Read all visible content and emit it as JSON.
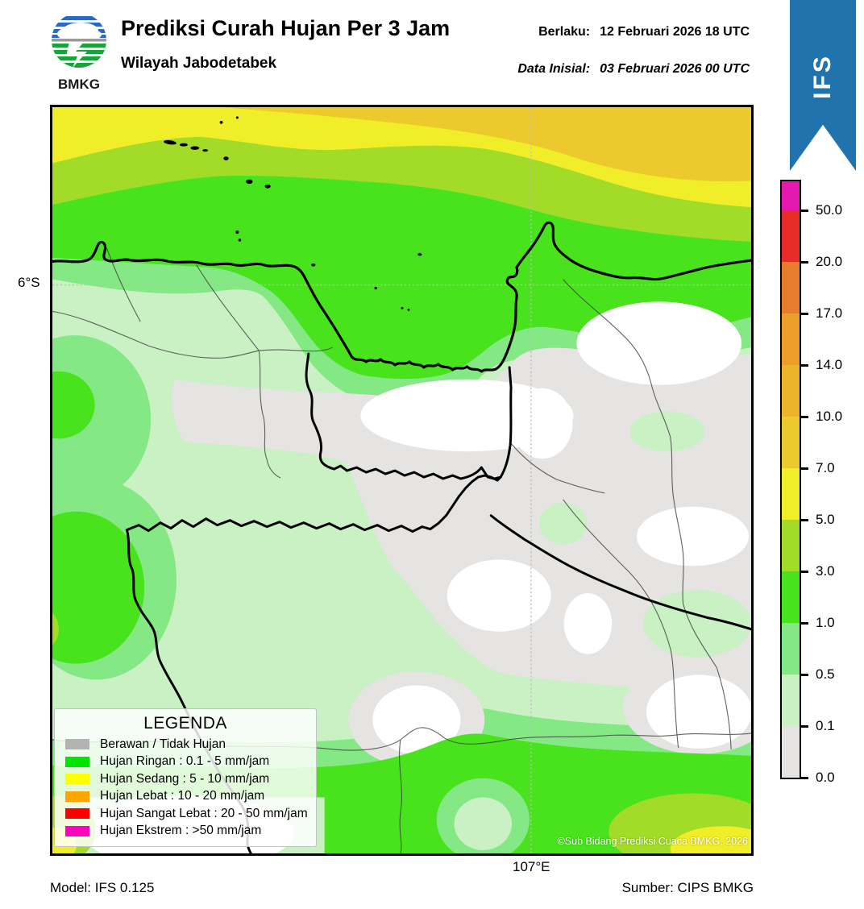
{
  "header": {
    "logo_text": "BMKG",
    "title": "Prediksi Curah Hujan Per 3 Jam",
    "subtitle": "Wilayah Jabodetabek",
    "valid_label": "Berlaku:",
    "valid_value": "12 Februari 2026 18 UTC",
    "init_label": "Data Inisial:",
    "init_value": "03 Februari 2026 00 UTC",
    "ribbon_label": "IFS",
    "ribbon_color": "#2173ae"
  },
  "map": {
    "lat_tick_label": "6°S",
    "lon_tick_label": "107°E",
    "copyright": "©Sub Bidang Prediksi Cuaca BMKG, 2026"
  },
  "colorbar": {
    "unit_note": "mm/jam",
    "scale": [
      {
        "color": "#e619ae",
        "tick": "50.0"
      },
      {
        "color": "#e72b26",
        "tick": "20.0"
      },
      {
        "color": "#e87c2e",
        "tick": "17.0"
      },
      {
        "color": "#eb9f28",
        "tick": "14.0"
      },
      {
        "color": "#ecb42a",
        "tick": "10.0"
      },
      {
        "color": "#ecc92c",
        "tick": "7.0"
      },
      {
        "color": "#f0ee28",
        "tick": "5.0"
      },
      {
        "color": "#a2dc28",
        "tick": "3.0"
      },
      {
        "color": "#48e31d",
        "tick": "1.0"
      },
      {
        "color": "#84e985",
        "tick": "0.5"
      },
      {
        "color": "#c9f1c4",
        "tick": "0.1"
      },
      {
        "color": "#e5e4e2",
        "tick": "0.0"
      }
    ]
  },
  "legend": {
    "title": "LEGENDA",
    "items": [
      {
        "color": "#b3b3b3",
        "label": "Berawan / Tidak Hujan"
      },
      {
        "color": "#00e400",
        "label": "Hujan Ringan : 0.1 - 5 mm/jam"
      },
      {
        "color": "#ffff00",
        "label": "Hujan Sedang : 5 - 10 mm/jam"
      },
      {
        "color": "#ffa500",
        "label": "Hujan Lebat : 10 - 20 mm/jam"
      },
      {
        "color": "#ff0000",
        "label": "Hujan Sangat Lebat : 20 - 50 mm/jam"
      },
      {
        "color": "#ff00bf",
        "label": "Hujan Ekstrem : >50 mm/jam"
      }
    ]
  },
  "footer": {
    "model": "Model: IFS 0.125",
    "source": "Sumber: CIPS BMKG"
  },
  "palette": {
    "extreme": "#e619ae",
    "very_heavy": "#e72b26",
    "heavy_dark": "#e87c2e",
    "heavy": "#eb9f28",
    "amber": "#ecb42a",
    "gold": "#ecc92c",
    "yellow": "#f0ee28",
    "yellow_green": "#a2dc28",
    "green": "#48e31d",
    "light_green": "#84e985",
    "pale_green": "#c9f1c4",
    "gray": "#e5e4e2",
    "white": "#ffffff",
    "ribbon": "#2173ae",
    "logo_blue": "#2a6bbf",
    "logo_green": "#1aa23b"
  }
}
